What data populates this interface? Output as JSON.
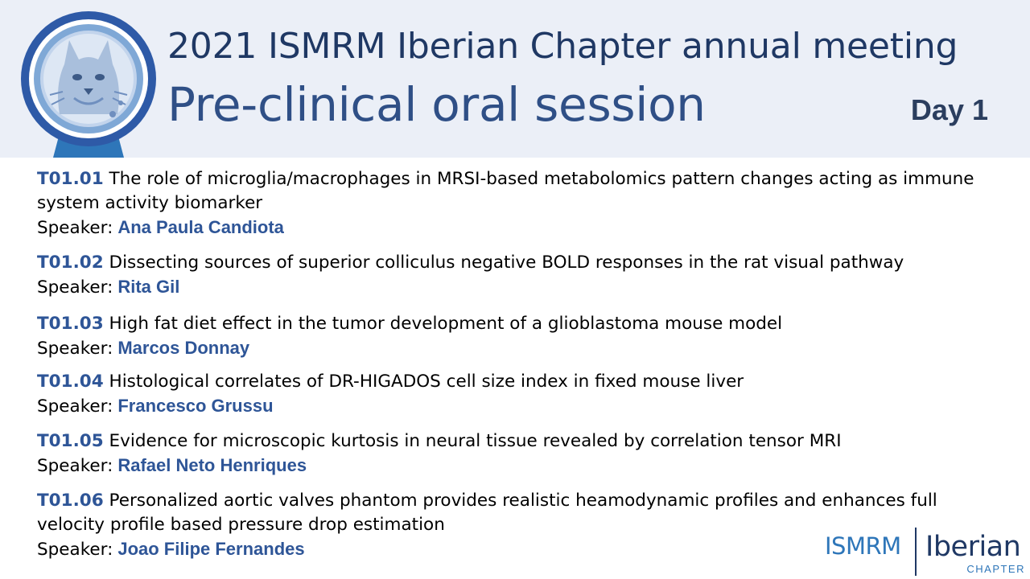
{
  "header": {
    "title": "2021 ISMRM Iberian Chapter annual meeting",
    "subtitle": "Pre-clinical oral session",
    "day": "Day 1",
    "logo_icon": "lynx-emblem-icon"
  },
  "speaker_label": "Speaker:",
  "talks": [
    {
      "code": "T01.01",
      "title": "The role of microglia/macrophages in MRSI-based metabolomics pattern changes acting as immune system activity biomarker",
      "speaker": "Ana Paula Candiota"
    },
    {
      "code": "T01.02",
      "title": "Dissecting sources of superior colliculus negative BOLD responses in the rat visual pathway",
      "speaker": "Rita Gil"
    },
    {
      "code": "T01.03",
      "title": "High fat diet effect in the tumor development of a glioblastoma mouse model",
      "speaker": "Marcos Donnay"
    },
    {
      "code": "T01.04",
      "title": "Histological correlates of DR-HIGADOS cell size index in fixed mouse liver",
      "speaker": "Francesco Grussu"
    },
    {
      "code": "T01.05",
      "title": "Evidence for microscopic kurtosis in neural  tissue revealed by correlation tensor MRI",
      "speaker": "Rafael Neto Henriques"
    },
    {
      "code": "T01.06",
      "title": "Personalized aortic valves phantom provides realistic heamodynamic profiles and enhances full velocity profile based pressure drop estimation",
      "speaker": "Joao Filipe Fernandes"
    }
  ],
  "brand": {
    "left": "ISMRM",
    "right": "Iberian",
    "sub": "CHAPTER"
  },
  "colors": {
    "header_bg": "#ebeff7",
    "title": "#1f3864",
    "accent": "#2e5597",
    "brand_blue": "#2e76b9"
  }
}
